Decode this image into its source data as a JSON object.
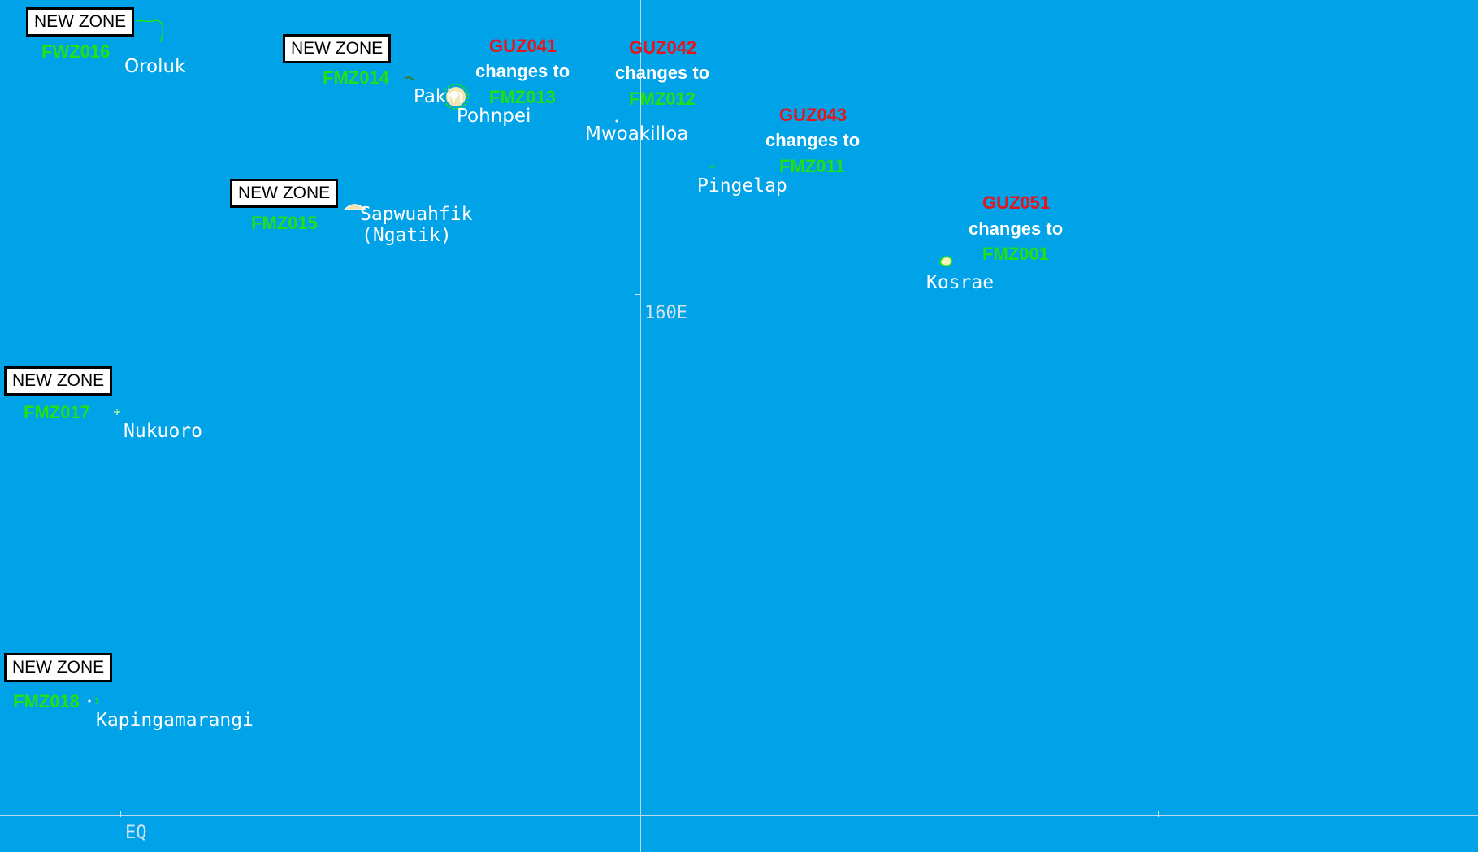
{
  "grid": {
    "meridian_label": "160E",
    "equator_label": "EQ"
  },
  "places": {
    "oroluk": "Oroluk",
    "pakin": "Pakin",
    "pohnpei": "Pohnpei",
    "mwoakilloa": "Mwoakilloa",
    "pingelap": "Pingelap",
    "kosrae": "Kosrae",
    "sapwuahfik_1": "Sapwuahfik",
    "sapwuahfik_2": "(Ngatik)",
    "nukuoro": "Nukuoro",
    "kapingamarangi": "Kapingamarangi"
  },
  "new_zone_label": "NEW ZONE",
  "zones": {
    "oroluk": "FWZ016",
    "pakin": "FMZ014",
    "sapwuahfik": "FMZ015",
    "nukuoro": "FMZ017",
    "kapingamarangi": "FMZ018"
  },
  "changes_text": "changes to",
  "zone_changes": {
    "pohnpei": {
      "old": "GUZ041",
      "new": "FMZ013"
    },
    "mwoakilloa": {
      "old": "GUZ042",
      "new": "FMZ012"
    },
    "pingelap": {
      "old": "GUZ043",
      "new": "FMZ011"
    },
    "kosrae": {
      "old": "GUZ051",
      "new": "FMZ001"
    }
  },
  "colors": {
    "ocean": "#00a2e8",
    "new_zone_code": "#22e014",
    "old_zone_code": "#e8141c",
    "label": "#ffffff"
  }
}
